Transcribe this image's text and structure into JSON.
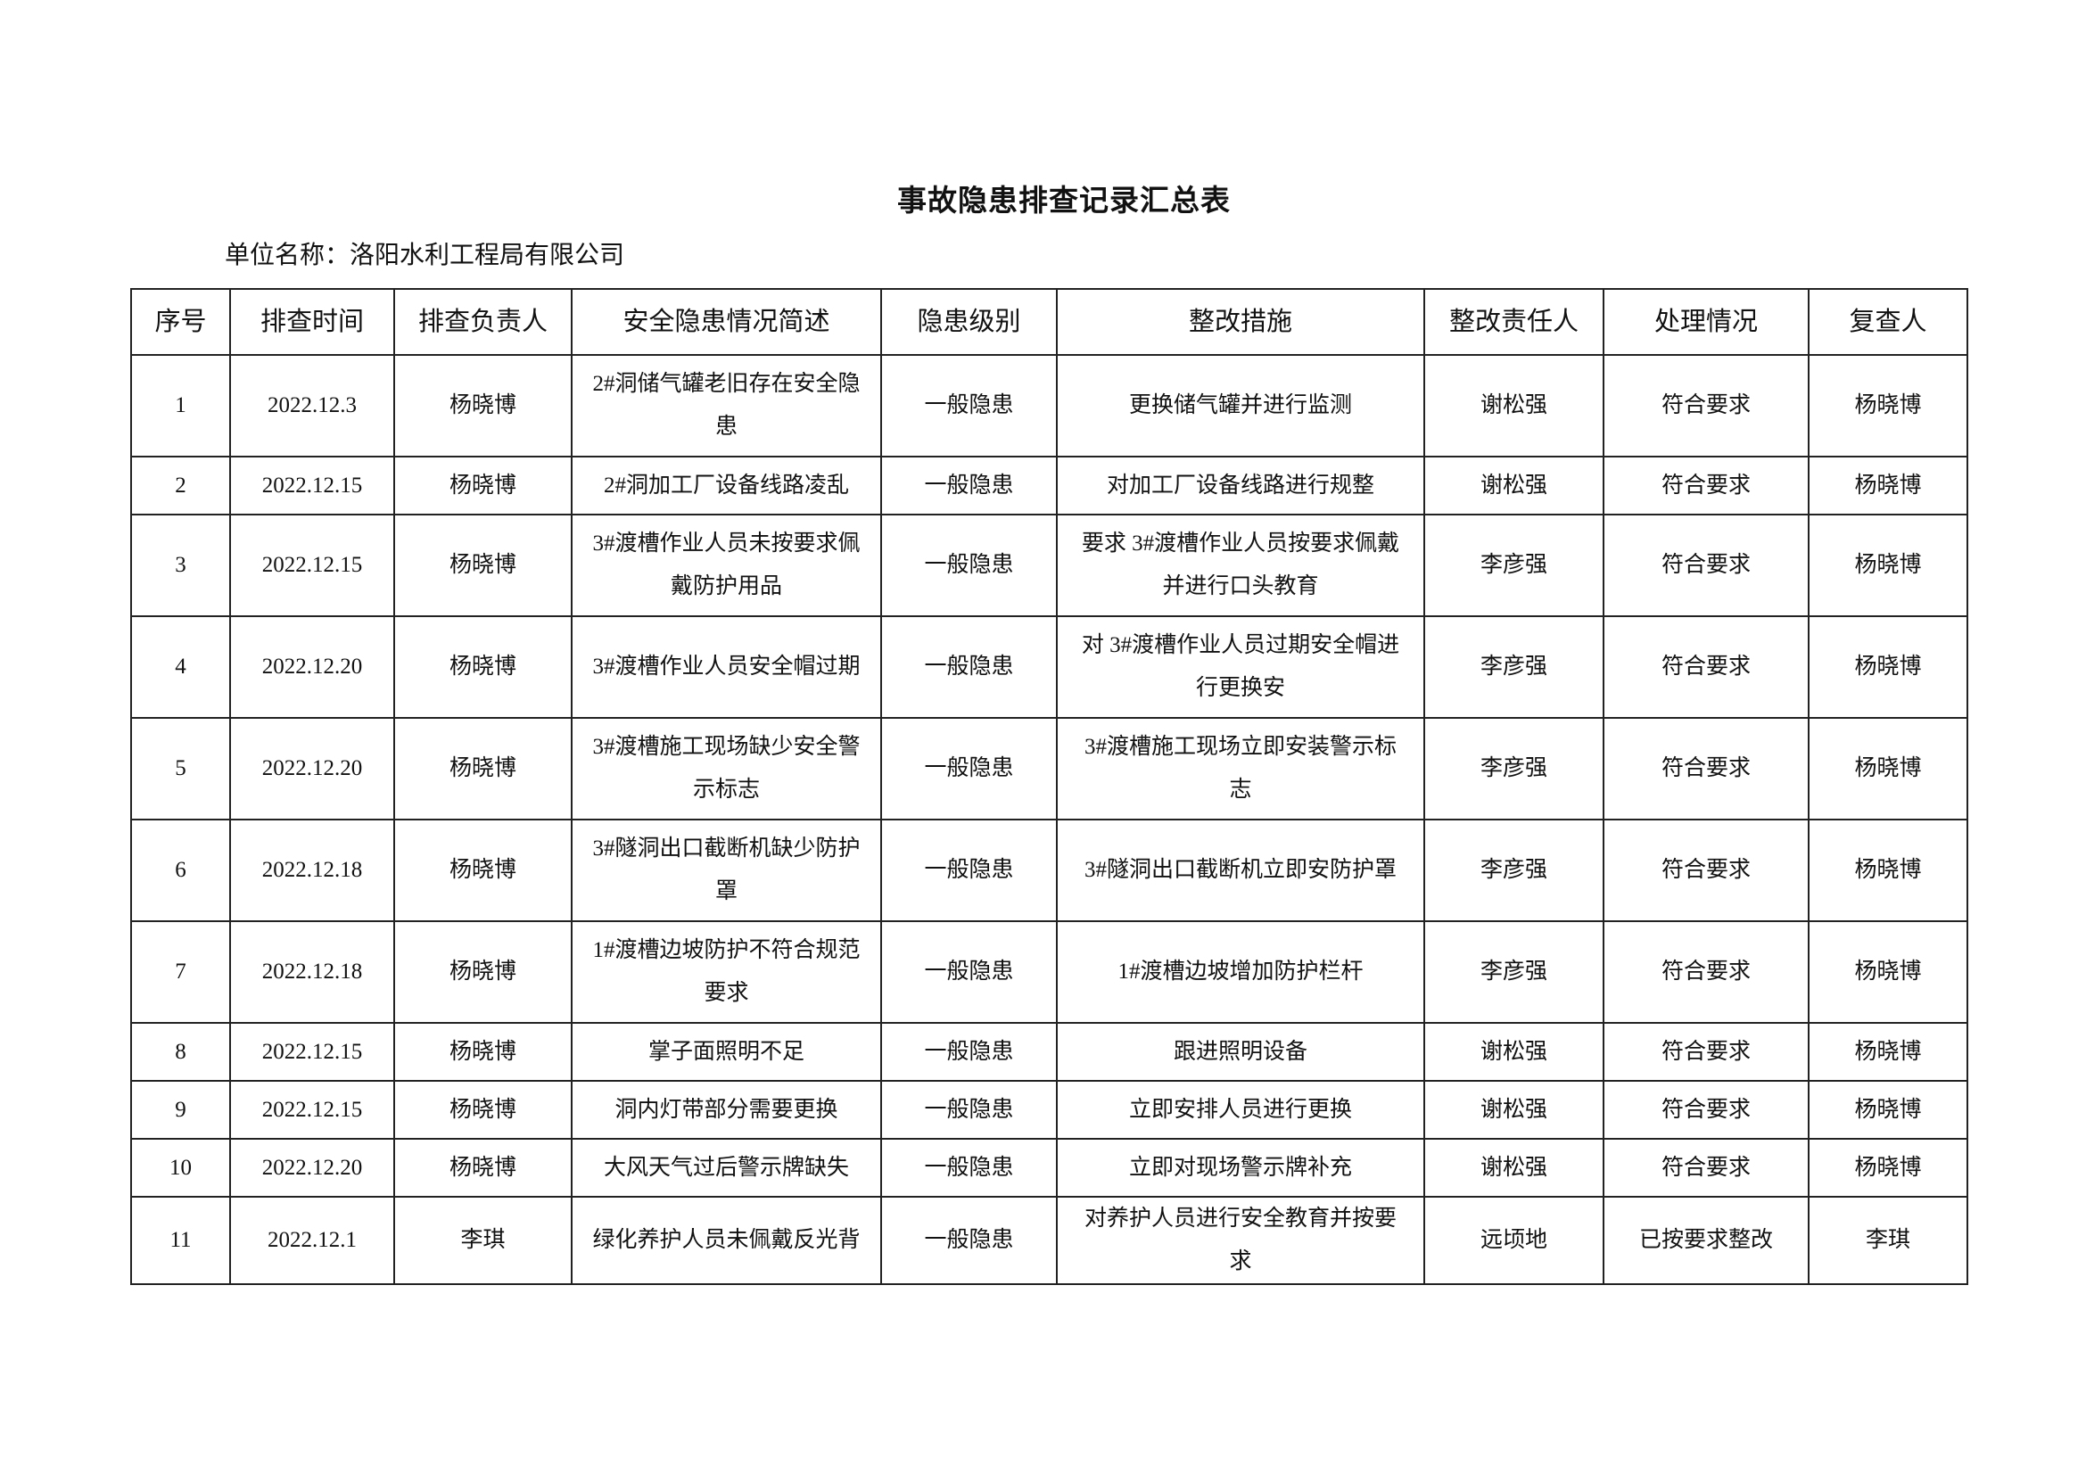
{
  "title": "事故隐患排查记录汇总表",
  "unit_name": "单位名称：洛阳水利工程局有限公司",
  "table": {
    "headers": [
      "序号",
      "排查时间",
      "排查负责人",
      "安全隐患情况简述",
      "隐患级别",
      "整改措施",
      "整改责任人",
      "处理情况",
      "复查人"
    ],
    "rows": [
      [
        "1",
        "2022.12.3",
        "杨晓博",
        "2#洞储气罐老旧存在安全隐患",
        "一般隐患",
        "更换储气罐并进行监测",
        "谢松强",
        "符合要求",
        "杨晓博"
      ],
      [
        "2",
        "2022.12.15",
        "杨晓博",
        "2#洞加工厂设备线路凌乱",
        "一般隐患",
        "对加工厂设备线路进行规整",
        "谢松强",
        "符合要求",
        "杨晓博"
      ],
      [
        "3",
        "2022.12.15",
        "杨晓博",
        "3#渡槽作业人员未按要求佩戴防护用品",
        "一般隐患",
        "要求 3#渡槽作业人员按要求佩戴并进行口头教育",
        "李彦强",
        "符合要求",
        "杨晓博"
      ],
      [
        "4",
        "2022.12.20",
        "杨晓博",
        "3#渡槽作业人员安全帽过期",
        "一般隐患",
        "对 3#渡槽作业人员过期安全帽进行更换安",
        "李彦强",
        "符合要求",
        "杨晓博"
      ],
      [
        "5",
        "2022.12.20",
        "杨晓博",
        "3#渡槽施工现场缺少安全警示标志",
        "一般隐患",
        "3#渡槽施工现场立即安装警示标志",
        "李彦强",
        "符合要求",
        "杨晓博"
      ],
      [
        "6",
        "2022.12.18",
        "杨晓博",
        "3#隧洞出口截断机缺少防护罩",
        "一般隐患",
        "3#隧洞出口截断机立即安防护罩",
        "李彦强",
        "符合要求",
        "杨晓博"
      ],
      [
        "7",
        "2022.12.18",
        "杨晓博",
        "1#渡槽边坡防护不符合规范要求",
        "一般隐患",
        "1#渡槽边坡增加防护栏杆",
        "李彦强",
        "符合要求",
        "杨晓博"
      ],
      [
        "8",
        "2022.12.15",
        "杨晓博",
        "掌子面照明不足",
        "一般隐患",
        "跟进照明设备",
        "谢松强",
        "符合要求",
        "杨晓博"
      ],
      [
        "9",
        "2022.12.15",
        "杨晓博",
        "洞内灯带部分需要更换",
        "一般隐患",
        "立即安排人员进行更换",
        "谢松强",
        "符合要求",
        "杨晓博"
      ],
      [
        "10",
        "2022.12.20",
        "杨晓博",
        "大风天气过后警示牌缺失",
        "一般隐患",
        "立即对现场警示牌补充",
        "谢松强",
        "符合要求",
        "杨晓博"
      ],
      [
        "11",
        "2022.12.1",
        "李琪",
        "绿化养护人员未佩戴反光背",
        "一般隐患",
        "对养护人员进行安全教育并按要求",
        "远顷地",
        "已按要求整改",
        "李琪"
      ]
    ]
  }
}
